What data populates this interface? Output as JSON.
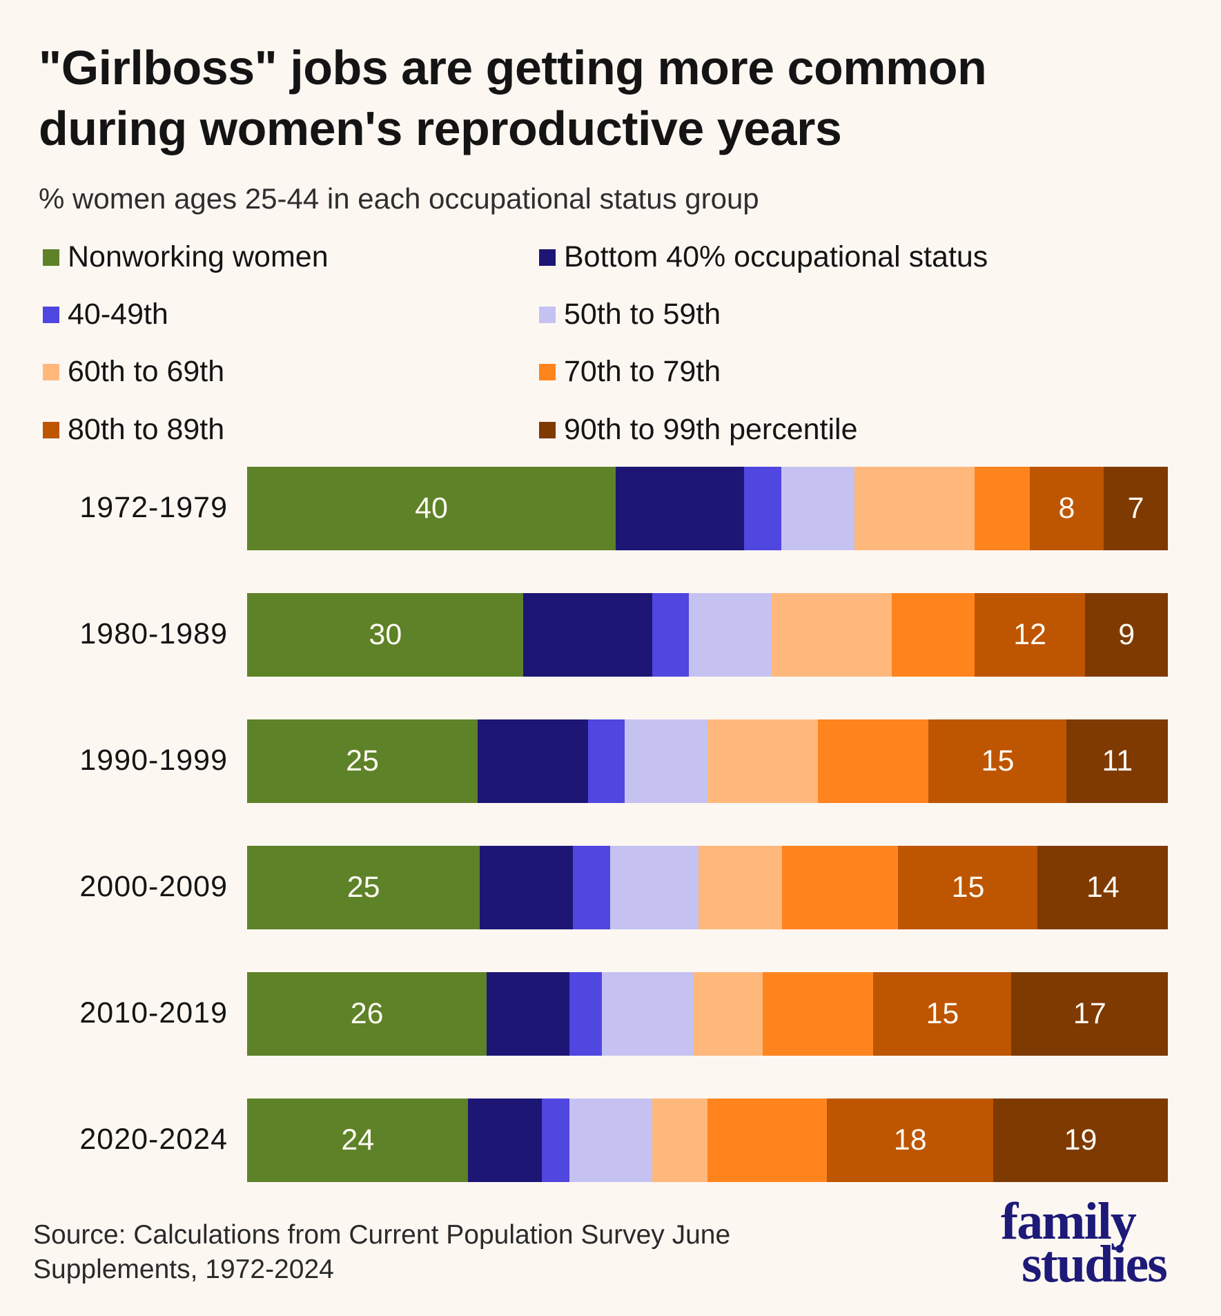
{
  "header": {
    "title_line1": "\"Girlboss\" jobs are getting more common",
    "title_line2": "during women's reproductive years",
    "subtitle": "% women ages 25-44 in each occupational status group"
  },
  "footer": {
    "source_line1": "Source: Calculations from Current Population Survey June",
    "source_line2": "Supplements, 1972-2024",
    "logo_line1": "family",
    "logo_line2": "studies"
  },
  "chart_data": {
    "type": "bar",
    "orientation": "horizontal",
    "stacked": true,
    "title": "\"Girlboss\" jobs are getting more common during women's reproductive years",
    "subtitle": "% women ages 25-44 in each occupational status group",
    "xlabel": "",
    "ylabel": "",
    "xlim": [
      0,
      100
    ],
    "grid": false,
    "legend_position": "top",
    "categories": [
      "1972-1979",
      "1980-1989",
      "1990-1999",
      "2000-2009",
      "2010-2019",
      "2020-2024"
    ],
    "series": [
      {
        "name": "Nonworking women",
        "color": "#5e8228",
        "values": [
          40,
          30,
          25,
          25,
          26,
          24
        ],
        "labels": [
          "40",
          "30",
          "25",
          "25",
          "26",
          "24"
        ]
      },
      {
        "name": "Bottom 40% occupational status",
        "color": "#1d1675",
        "values": [
          14,
          14,
          12,
          10,
          9,
          8
        ],
        "labels": [
          "",
          "",
          "",
          "",
          "",
          ""
        ]
      },
      {
        "name": "40-49th",
        "color": "#5046e0",
        "values": [
          4,
          4,
          4,
          4,
          3.5,
          3
        ],
        "labels": [
          "",
          "",
          "",
          "",
          "",
          ""
        ]
      },
      {
        "name": "50th to 59th",
        "color": "#c5c2f2",
        "values": [
          8,
          9,
          9,
          9.5,
          10,
          9
        ],
        "labels": [
          "",
          "",
          "",
          "",
          "",
          ""
        ]
      },
      {
        "name": "60th to 69th",
        "color": "#ffb87c",
        "values": [
          13,
          13,
          12,
          9,
          7.5,
          6
        ],
        "labels": [
          "",
          "",
          "",
          "",
          "",
          ""
        ]
      },
      {
        "name": "70th to 79th",
        "color": "#ff841e",
        "values": [
          6,
          9,
          12,
          12.5,
          12,
          13
        ],
        "labels": [
          "",
          "",
          "",
          "",
          "",
          ""
        ]
      },
      {
        "name": "80th to 89th",
        "color": "#be5500",
        "values": [
          8,
          12,
          15,
          15,
          15,
          18
        ],
        "labels": [
          "8",
          "12",
          "15",
          "15",
          "15",
          "18"
        ]
      },
      {
        "name": "90th to 99th percentile",
        "color": "#7e3a00",
        "values": [
          7,
          9,
          11,
          14,
          17,
          19
        ],
        "labels": [
          "7",
          "9",
          "11",
          "14",
          "17",
          "19"
        ]
      }
    ]
  }
}
